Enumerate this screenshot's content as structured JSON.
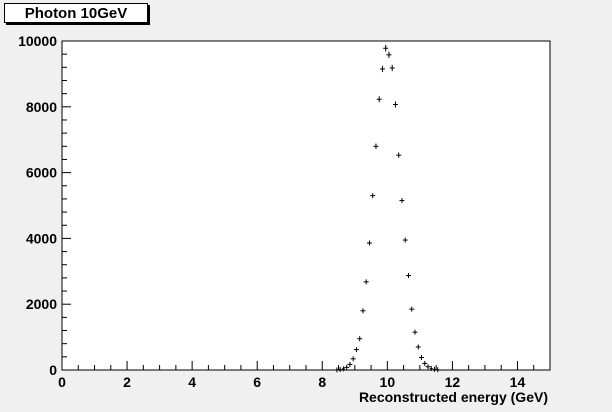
{
  "title": "Photon 10GeV",
  "chart_data": {
    "type": "scatter",
    "title": "Photon 10GeV",
    "xlabel": "Reconstructed energy (GeV)",
    "ylabel": "",
    "xlim": [
      0,
      15
    ],
    "ylim": [
      0,
      10000
    ],
    "x_ticks": [
      0,
      2,
      4,
      6,
      8,
      10,
      12,
      14
    ],
    "y_ticks": [
      0,
      2000,
      4000,
      6000,
      8000,
      10000
    ],
    "grid": false,
    "points": [
      {
        "x": 8.45,
        "y": 5
      },
      {
        "x": 8.55,
        "y": 15
      },
      {
        "x": 8.65,
        "y": 35
      },
      {
        "x": 8.75,
        "y": 80
      },
      {
        "x": 8.85,
        "y": 170
      },
      {
        "x": 8.95,
        "y": 340
      },
      {
        "x": 9.05,
        "y": 620
      },
      {
        "x": 9.15,
        "y": 950
      },
      {
        "x": 9.25,
        "y": 1800
      },
      {
        "x": 9.35,
        "y": 2680
      },
      {
        "x": 9.45,
        "y": 3860
      },
      {
        "x": 9.55,
        "y": 5300
      },
      {
        "x": 9.65,
        "y": 6800
      },
      {
        "x": 9.75,
        "y": 8230
      },
      {
        "x": 9.85,
        "y": 9150
      },
      {
        "x": 9.95,
        "y": 9780
      },
      {
        "x": 10.05,
        "y": 9580
      },
      {
        "x": 10.15,
        "y": 9180
      },
      {
        "x": 10.25,
        "y": 8070
      },
      {
        "x": 10.35,
        "y": 6530
      },
      {
        "x": 10.45,
        "y": 5150
      },
      {
        "x": 10.55,
        "y": 3950
      },
      {
        "x": 10.65,
        "y": 2870
      },
      {
        "x": 10.75,
        "y": 1850
      },
      {
        "x": 10.85,
        "y": 1150
      },
      {
        "x": 10.95,
        "y": 700
      },
      {
        "x": 11.05,
        "y": 380
      },
      {
        "x": 11.15,
        "y": 200
      },
      {
        "x": 11.25,
        "y": 100
      },
      {
        "x": 11.35,
        "y": 45
      },
      {
        "x": 11.45,
        "y": 20
      },
      {
        "x": 11.55,
        "y": 8
      }
    ]
  }
}
